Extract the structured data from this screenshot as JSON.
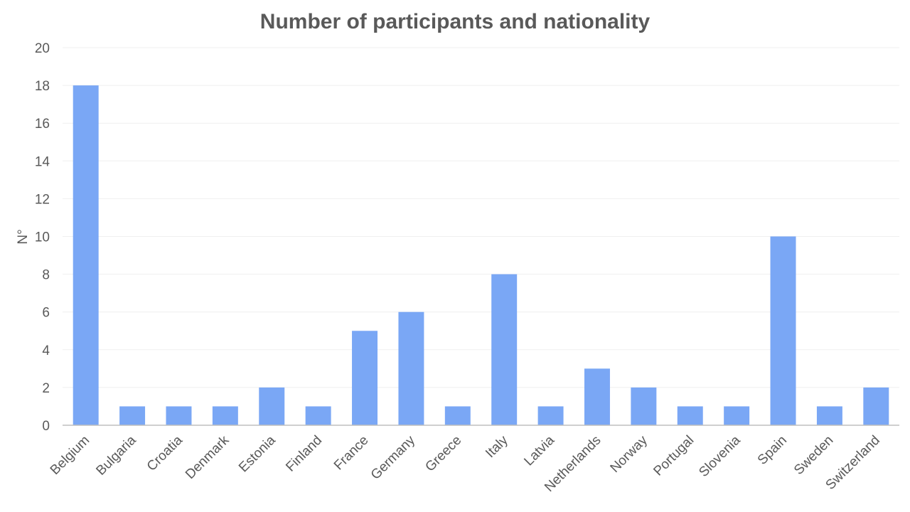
{
  "chart_data": {
    "type": "bar",
    "title": "Number of participants and nationality",
    "xlabel": "",
    "ylabel": "N°",
    "ylim": [
      0,
      20
    ],
    "yticks": [
      0,
      2,
      4,
      6,
      8,
      10,
      12,
      14,
      16,
      18,
      20
    ],
    "grid": true,
    "legend": "none",
    "bar_color": "#7aa7f5",
    "categories": [
      "Belgium",
      "Bulgaria",
      "Croatia",
      "Denmark",
      "Estonia",
      "Finland",
      "France",
      "Germany",
      "Greece",
      "Italy",
      "Latvia",
      "Netherlands",
      "Norway",
      "Portugal",
      "Slovenia",
      "Spain",
      "Sweden",
      "Switzerland"
    ],
    "values": [
      18,
      1,
      1,
      1,
      2,
      1,
      5,
      6,
      1,
      8,
      1,
      3,
      2,
      1,
      1,
      10,
      1,
      2
    ]
  }
}
